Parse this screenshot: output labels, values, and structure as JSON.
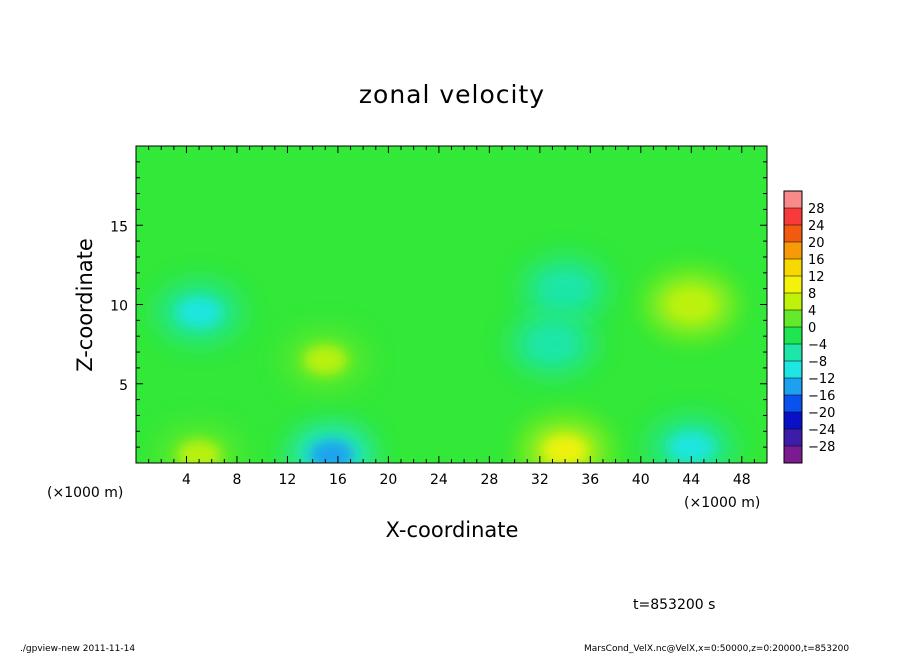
{
  "chart_data": {
    "type": "heatmap",
    "title": "zonal velocity",
    "xlabel": "X-coordinate",
    "ylabel": "Z-coordinate",
    "x_unit": "(×1000 m)",
    "xlim": [
      0,
      50
    ],
    "ylim": [
      0,
      20
    ],
    "x_ticks": [
      4,
      8,
      12,
      16,
      20,
      24,
      28,
      32,
      36,
      40,
      44,
      48
    ],
    "y_ticks": [
      5,
      10,
      15
    ],
    "colorbar": {
      "levels": [
        28,
        24,
        20,
        16,
        12,
        8,
        4,
        0,
        -4,
        -8,
        -12,
        -16,
        -20,
        -24,
        -28
      ],
      "labels": [
        "28",
        "24",
        "20",
        "16",
        "12",
        "8",
        "4",
        "0",
        "−4",
        "−8",
        "−12",
        "−16",
        "−20",
        "−24",
        "−28"
      ],
      "colors": [
        "#f88a8a",
        "#f73a3a",
        "#f25a10",
        "#f79a08",
        "#f7d800",
        "#f2f20a",
        "#bef20a",
        "#64ea2a",
        "#1ee650",
        "#1ee6a8",
        "#1ee6e2",
        "#1ea0f0",
        "#0a52f0",
        "#0a10c8",
        "#3c1ca8",
        "#7a1c90"
      ]
    },
    "features": [
      {
        "x": 5,
        "y": 9.5,
        "value": -9
      },
      {
        "x": 34,
        "y": 11,
        "value": -8
      },
      {
        "x": 33,
        "y": 7.5,
        "value": -7
      },
      {
        "x": 15.5,
        "y": 0.5,
        "value": -15
      },
      {
        "x": 44,
        "y": 1,
        "value": -11
      },
      {
        "x": 44,
        "y": 10,
        "value": 7
      },
      {
        "x": 15,
        "y": 6.5,
        "value": 6
      },
      {
        "x": 34,
        "y": 0.8,
        "value": 11
      },
      {
        "x": 5,
        "y": 0.5,
        "value": 6
      }
    ],
    "time_label": "t=853200 s"
  },
  "footer": {
    "left": "./gpview-new  2011-11-14",
    "right": "MarsCond_VelX.nc@VelX,x=0:50000,z=0:20000,t=853200"
  }
}
